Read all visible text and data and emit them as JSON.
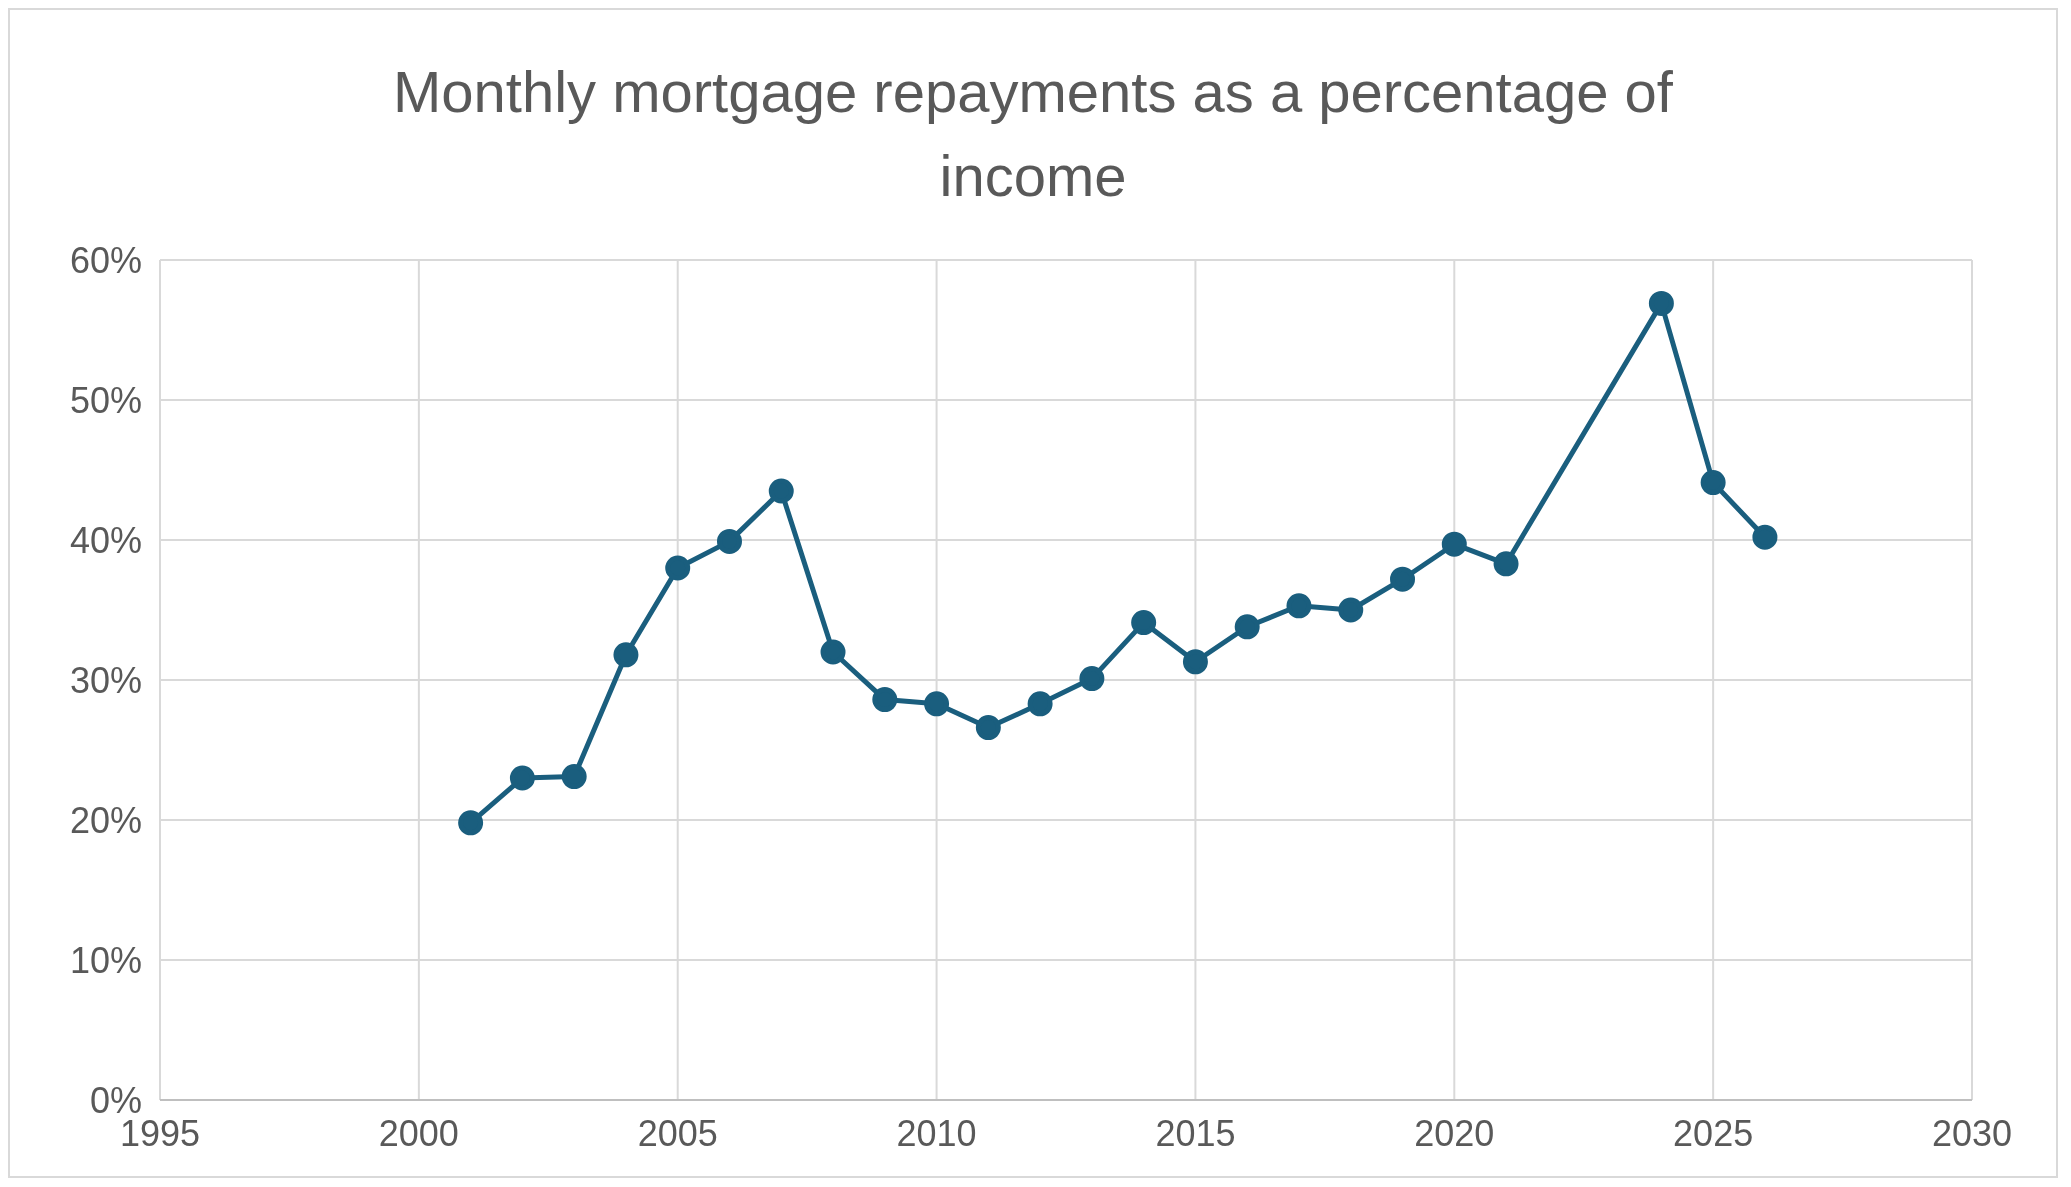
{
  "chart_data": {
    "type": "line",
    "title": "Monthly mortgage repayments as a percentage of income",
    "x": [
      2001,
      2002,
      2003,
      2004,
      2005,
      2006,
      2007,
      2008,
      2009,
      2010,
      2011,
      2012,
      2013,
      2014,
      2015,
      2016,
      2017,
      2018,
      2019,
      2020,
      2021,
      2024,
      2025,
      2026
    ],
    "series": [
      {
        "color": "#1a5e7e",
        "values": [
          19.8,
          23.0,
          23.1,
          31.8,
          38.0,
          39.9,
          43.5,
          32.0,
          28.6,
          28.3,
          26.6,
          28.3,
          30.1,
          34.1,
          31.3,
          33.8,
          35.3,
          35.0,
          37.2,
          39.7,
          38.3,
          56.9,
          44.1,
          40.2
        ]
      }
    ],
    "xlim": [
      1995,
      2030
    ],
    "xticks": [
      1995,
      2000,
      2005,
      2010,
      2015,
      2020,
      2025,
      2030
    ],
    "ylim": [
      0,
      60
    ],
    "yticks": [
      {
        "value": 0,
        "label": "0%"
      },
      {
        "value": 10,
        "label": "10%"
      },
      {
        "value": 20,
        "label": "20%"
      },
      {
        "value": 30,
        "label": "30%"
      },
      {
        "value": 40,
        "label": "40%"
      },
      {
        "value": 50,
        "label": "50%"
      },
      {
        "value": 60,
        "label": "60%"
      }
    ],
    "grid": true,
    "marker": "circle",
    "line_style": "solid",
    "legend": false
  }
}
